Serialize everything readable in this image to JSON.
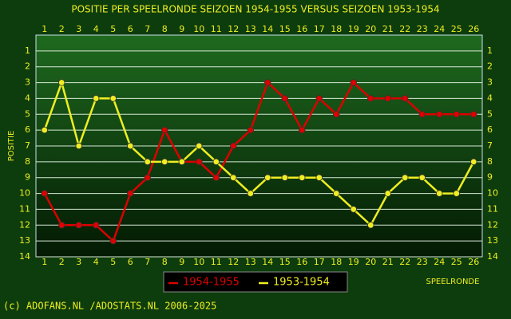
{
  "chart_data": {
    "type": "line",
    "title": "POSITIE PER SPEELRONDE SEIZOEN 1954-1955 VERSUS SEIZOEN 1953-1954",
    "x_label": "SPEELRONDE",
    "y_label": "POSITIE",
    "x": [
      1,
      2,
      3,
      4,
      5,
      6,
      7,
      8,
      9,
      10,
      11,
      12,
      13,
      14,
      15,
      16,
      17,
      18,
      19,
      20,
      21,
      22,
      23,
      24,
      25,
      26
    ],
    "xlim": [
      0.5,
      26.5
    ],
    "xticks": [
      1,
      2,
      3,
      4,
      5,
      6,
      7,
      8,
      9,
      10,
      11,
      12,
      13,
      14,
      15,
      16,
      17,
      18,
      19,
      20,
      21,
      22,
      23,
      24,
      25,
      26
    ],
    "ylim": [
      14,
      0
    ],
    "y_inverted": true,
    "yticks": [
      1,
      2,
      3,
      4,
      5,
      6,
      7,
      8,
      9,
      10,
      11,
      12,
      13,
      14
    ],
    "grid": true,
    "series": [
      {
        "name": "1954-1955",
        "color": "#dd0000",
        "values": [
          10,
          12,
          12,
          12,
          13,
          10,
          9,
          6,
          8,
          8,
          9,
          7,
          6,
          3,
          4,
          6,
          4,
          5,
          3,
          4,
          4,
          4,
          5,
          5,
          5,
          5
        ]
      },
      {
        "name": "1953-1954",
        "color": "#eeee22",
        "values": [
          6,
          3,
          7,
          4,
          4,
          7,
          8,
          8,
          8,
          7,
          8,
          9,
          10,
          9,
          9,
          9,
          9,
          10,
          11,
          12,
          10,
          9,
          9,
          10,
          10,
          8
        ]
      }
    ],
    "footer": "(c) ADOFANS.NL /ADOSTATS.NL 2006-2025"
  }
}
